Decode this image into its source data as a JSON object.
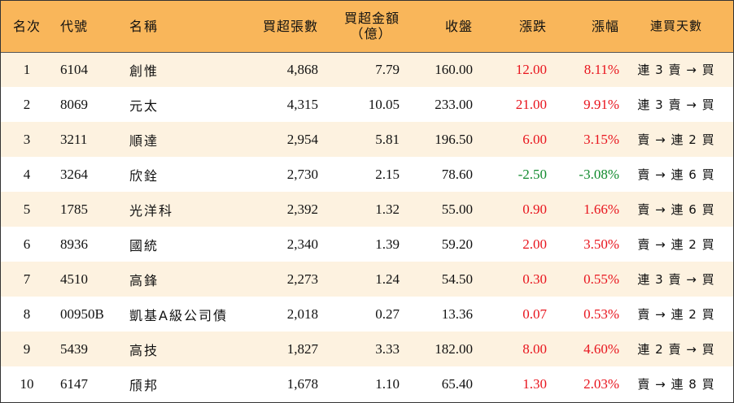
{
  "header": {
    "rank": "名次",
    "code": "代號",
    "name": "名稱",
    "buy_volume": "買超張數",
    "buy_amount_line1": "買超金額",
    "buy_amount_line2": "（億）",
    "close": "收盤",
    "change": "漲跌",
    "change_pct": "漲幅",
    "consecutive_days": "連買天數"
  },
  "colors": {
    "header_bg": "#f9b65a",
    "odd_row_bg": "#fdf2e0",
    "up": "#e8141d",
    "down": "#118a2e"
  },
  "rows": [
    {
      "rank": "1",
      "code": "6104",
      "name": "創惟",
      "buy_volume": "4,868",
      "buy_amount": "7.79",
      "close": "160.00",
      "change": "12.00",
      "change_pct": "8.11%",
      "direction": "up",
      "days": "連 3 賣 → 買"
    },
    {
      "rank": "2",
      "code": "8069",
      "name": "元太",
      "buy_volume": "4,315",
      "buy_amount": "10.05",
      "close": "233.00",
      "change": "21.00",
      "change_pct": "9.91%",
      "direction": "up",
      "days": "連 3 賣 → 買"
    },
    {
      "rank": "3",
      "code": "3211",
      "name": "順達",
      "buy_volume": "2,954",
      "buy_amount": "5.81",
      "close": "196.50",
      "change": "6.00",
      "change_pct": "3.15%",
      "direction": "up",
      "days": "賣 → 連 2 買"
    },
    {
      "rank": "4",
      "code": "3264",
      "name": "欣銓",
      "buy_volume": "2,730",
      "buy_amount": "2.15",
      "close": "78.60",
      "change": "-2.50",
      "change_pct": "-3.08%",
      "direction": "down",
      "days": "賣 → 連 6 買"
    },
    {
      "rank": "5",
      "code": "1785",
      "name": "光洋科",
      "buy_volume": "2,392",
      "buy_amount": "1.32",
      "close": "55.00",
      "change": "0.90",
      "change_pct": "1.66%",
      "direction": "up",
      "days": "賣 → 連 6 買"
    },
    {
      "rank": "6",
      "code": "8936",
      "name": "國統",
      "buy_volume": "2,340",
      "buy_amount": "1.39",
      "close": "59.20",
      "change": "2.00",
      "change_pct": "3.50%",
      "direction": "up",
      "days": "賣 → 連 2 買"
    },
    {
      "rank": "7",
      "code": "4510",
      "name": "高鋒",
      "buy_volume": "2,273",
      "buy_amount": "1.24",
      "close": "54.50",
      "change": "0.30",
      "change_pct": "0.55%",
      "direction": "up",
      "days": "連 3 賣 → 買"
    },
    {
      "rank": "8",
      "code": "00950B",
      "name": "凱基A級公司債",
      "buy_volume": "2,018",
      "buy_amount": "0.27",
      "close": "13.36",
      "change": "0.07",
      "change_pct": "0.53%",
      "direction": "up",
      "days": "賣 → 連 2 買"
    },
    {
      "rank": "9",
      "code": "5439",
      "name": "高技",
      "buy_volume": "1,827",
      "buy_amount": "3.33",
      "close": "182.00",
      "change": "8.00",
      "change_pct": "4.60%",
      "direction": "up",
      "days": "連 2 賣 → 買"
    },
    {
      "rank": "10",
      "code": "6147",
      "name": "頎邦",
      "buy_volume": "1,678",
      "buy_amount": "1.10",
      "close": "65.40",
      "change": "1.30",
      "change_pct": "2.03%",
      "direction": "up",
      "days": "賣 → 連 8 買"
    }
  ]
}
